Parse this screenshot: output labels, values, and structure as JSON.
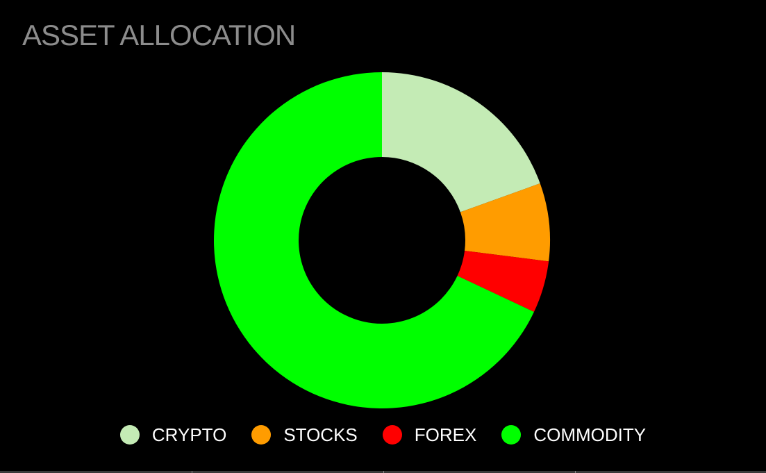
{
  "chart_data": {
    "type": "pie",
    "variant": "donut",
    "title": "ASSET ALLOCATION",
    "categories": [
      "CRYPTO",
      "STOCKS",
      "FOREX",
      "COMMODITY"
    ],
    "values": [
      19.5,
      7.5,
      5,
      68
    ],
    "colors": [
      "#c4ebb5",
      "#ff9c00",
      "#ff0000",
      "#00ff00"
    ],
    "legend": "bottom"
  }
}
